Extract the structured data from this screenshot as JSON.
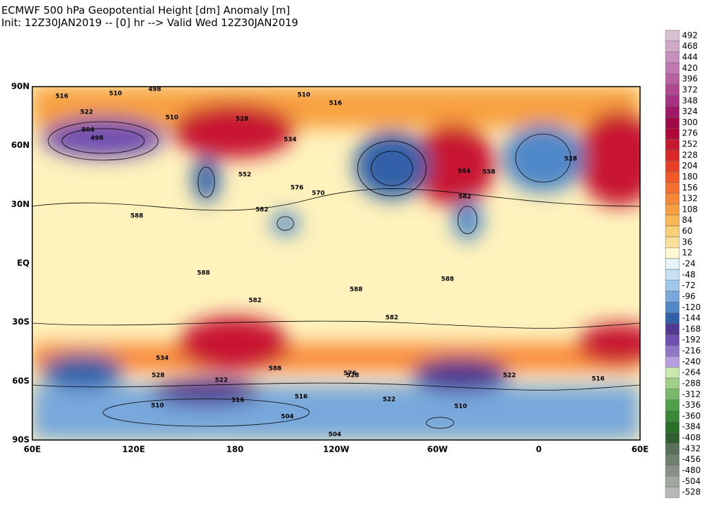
{
  "header": {
    "title": "ECMWF 500 hPa Geopotential Height [dm] Anomaly [m]",
    "subtitle": "Init: 12Z30JAN2019 -- [0] hr --> Valid Wed 12Z30JAN2019"
  },
  "map": {
    "lat_labels": [
      "90N",
      "60N",
      "30N",
      "EQ",
      "30S",
      "60S",
      "90S"
    ],
    "lon_labels": [
      "60E",
      "120E",
      "180",
      "120W",
      "60W",
      "0",
      "60E"
    ],
    "contour_labels": [
      516,
      510,
      498,
      510,
      516,
      522,
      504,
      498,
      528,
      534,
      552,
      576,
      570,
      582,
      588,
      582,
      588,
      588,
      588,
      582,
      576,
      588,
      534,
      522,
      528,
      516,
      510,
      504,
      504,
      516,
      522,
      528,
      510,
      516,
      582,
      510,
      528,
      522,
      564,
      558
    ]
  },
  "colorbar": {
    "labels": [
      492,
      468,
      444,
      420,
      396,
      372,
      348,
      324,
      300,
      276,
      252,
      228,
      204,
      180,
      156,
      132,
      108,
      84,
      60,
      36,
      12,
      -24,
      -48,
      -72,
      -96,
      -120,
      -144,
      -168,
      -192,
      -216,
      -240,
      -264,
      -288,
      -312,
      -336,
      -360,
      -384,
      -408,
      -432,
      -456,
      -480,
      -504,
      -528
    ],
    "colors": [
      "#d8c0d0",
      "#d0a8c8",
      "#c890c0",
      "#c078b0",
      "#b860a0",
      "#b04890",
      "#a83080",
      "#a01868",
      "#a00848",
      "#b00838",
      "#c81830",
      "#d82828",
      "#e84028",
      "#f05828",
      "#f87030",
      "#f88838",
      "#f8a040",
      "#f8b858",
      "#f8d078",
      "#f8e098",
      "#fff8d0",
      "#e8f4fc",
      "#c8e0f4",
      "#a0c8ec",
      "#78a8dc",
      "#5088c8",
      "#3060a8",
      "#503890",
      "#7050b0",
      "#9078c8",
      "#b8a0e0",
      "#c8e8b0",
      "#a0d088",
      "#78b868",
      "#50a048",
      "#388838",
      "#287028",
      "#306030",
      "#587058",
      "#708070",
      "#889088",
      "#a0a8a0",
      "#b8b8b8"
    ]
  }
}
